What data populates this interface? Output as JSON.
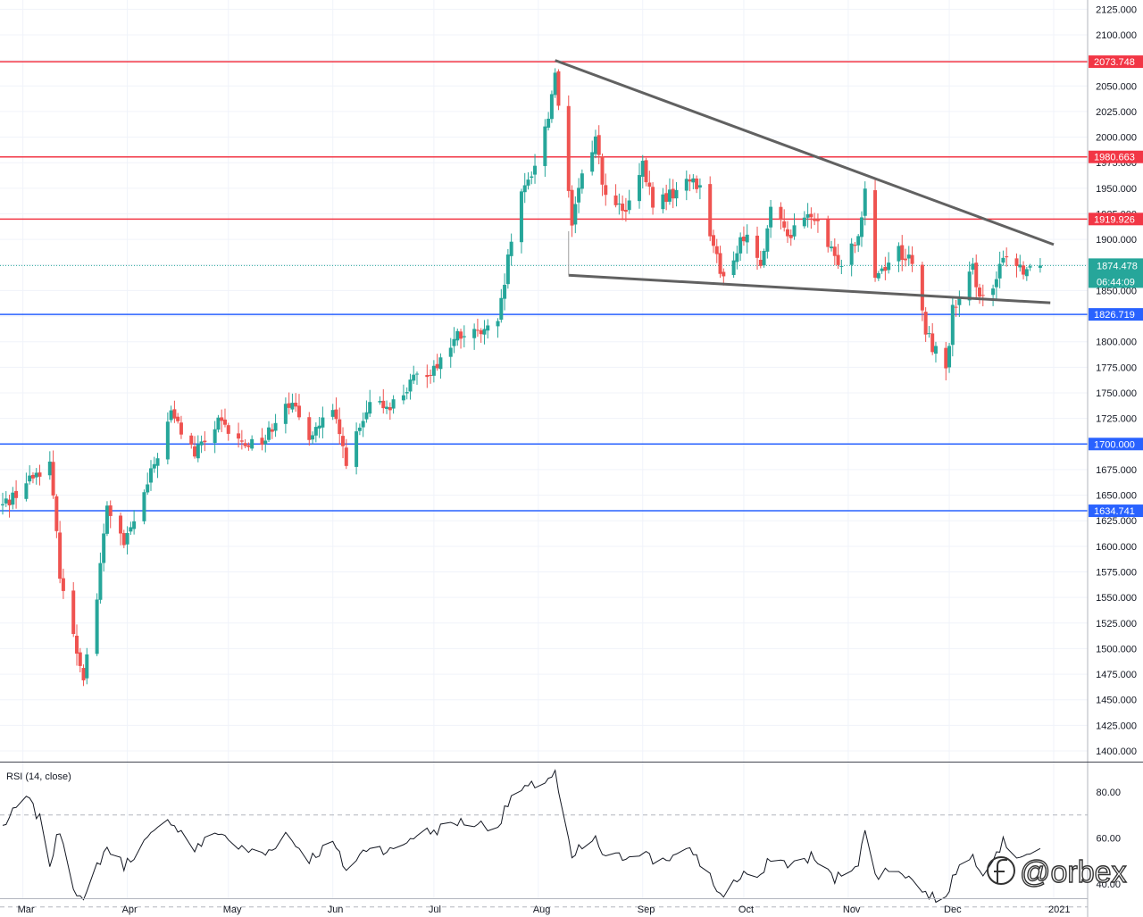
{
  "chart_data": [
    {
      "type": "candlestick",
      "ylim": [
        1385,
        2130
      ],
      "ticks": [
        "2125.000",
        "2100.000",
        "2075.000",
        "2050.000",
        "2025.000",
        "2000.000",
        "1975.000",
        "1950.000",
        "1925.000",
        "1900.000",
        "1875.000",
        "1850.000",
        "1825.000",
        "1800.000",
        "1775.000",
        "1750.000",
        "1725.000",
        "1700.000",
        "1675.000",
        "1650.000",
        "1625.000",
        "1600.000",
        "1575.000",
        "1550.000",
        "1525.000",
        "1500.000",
        "1475.000",
        "1450.000",
        "1425.000",
        "1400.000"
      ],
      "months": [
        "Mar",
        "Apr",
        "May",
        "Jun",
        "Jul",
        "Aug",
        "Sep",
        "Oct",
        "Nov",
        "Dec",
        "2021"
      ],
      "horizontal_levels": [
        {
          "value": 2073.748,
          "label": "2073.748",
          "color": "#f23645"
        },
        {
          "value": 1980.663,
          "label": "1980.663",
          "color": "#f23645"
        },
        {
          "value": 1919.926,
          "label": "1919.926",
          "color": "#f23645"
        },
        {
          "value": 1826.719,
          "label": "1826.719",
          "color": "#2962ff"
        },
        {
          "value": 1700.0,
          "label": "1700.000",
          "color": "#2962ff"
        },
        {
          "value": 1634.741,
          "label": "1634.741",
          "color": "#2962ff"
        }
      ],
      "last_price": {
        "value": 1874.478,
        "label": "1874.478",
        "countdown": "06:44:09",
        "color": "#26a69a"
      },
      "trendlines": [
        {
          "from": {
            "date": "2020-08-06",
            "price": 2075
          },
          "to": {
            "date": "2021-01-01",
            "price": 1895
          }
        },
        {
          "from": {
            "date": "2020-08-10",
            "price": 1865
          },
          "to": {
            "date": "2020-12-31",
            "price": 1838
          }
        }
      ],
      "colors": {
        "up": "#26a69a",
        "down": "#ef5350"
      },
      "key_prices": [
        {
          "date": "2020-02-24",
          "price": 1640
        },
        {
          "date": "2020-03-06",
          "price": 1675
        },
        {
          "date": "2020-03-09",
          "price": 1680
        },
        {
          "date": "2020-03-12",
          "price": 1575
        },
        {
          "date": "2020-03-16",
          "price": 1510
        },
        {
          "date": "2020-03-19",
          "price": 1475
        },
        {
          "date": "2020-03-23",
          "price": 1550
        },
        {
          "date": "2020-03-26",
          "price": 1640
        },
        {
          "date": "2020-03-31",
          "price": 1600
        },
        {
          "date": "2020-04-06",
          "price": 1650
        },
        {
          "date": "2020-04-14",
          "price": 1730
        },
        {
          "date": "2020-04-21",
          "price": 1690
        },
        {
          "date": "2020-04-28",
          "price": 1720
        },
        {
          "date": "2020-05-05",
          "price": 1700
        },
        {
          "date": "2020-05-12",
          "price": 1705
        },
        {
          "date": "2020-05-18",
          "price": 1745
        },
        {
          "date": "2020-05-25",
          "price": 1710
        },
        {
          "date": "2020-06-01",
          "price": 1730
        },
        {
          "date": "2020-06-05",
          "price": 1685
        },
        {
          "date": "2020-06-12",
          "price": 1735
        },
        {
          "date": "2020-06-19",
          "price": 1740
        },
        {
          "date": "2020-06-26",
          "price": 1765
        },
        {
          "date": "2020-07-01",
          "price": 1775
        },
        {
          "date": "2020-07-08",
          "price": 1805
        },
        {
          "date": "2020-07-15",
          "price": 1808
        },
        {
          "date": "2020-07-20",
          "price": 1815
        },
        {
          "date": "2020-07-24",
          "price": 1900
        },
        {
          "date": "2020-07-27",
          "price": 1940
        },
        {
          "date": "2020-07-31",
          "price": 1975
        },
        {
          "date": "2020-08-04",
          "price": 2020
        },
        {
          "date": "2020-08-06",
          "price": 2065
        },
        {
          "date": "2020-08-07",
          "price": 2035
        },
        {
          "date": "2020-08-11",
          "price": 1910
        },
        {
          "date": "2020-08-13",
          "price": 1950
        },
        {
          "date": "2020-08-18",
          "price": 2000
        },
        {
          "date": "2020-08-21",
          "price": 1940
        },
        {
          "date": "2020-08-27",
          "price": 1925
        },
        {
          "date": "2020-09-01",
          "price": 1970
        },
        {
          "date": "2020-09-04",
          "price": 1935
        },
        {
          "date": "2020-09-10",
          "price": 1945
        },
        {
          "date": "2020-09-16",
          "price": 1960
        },
        {
          "date": "2020-09-18",
          "price": 1950
        },
        {
          "date": "2020-09-21",
          "price": 1910
        },
        {
          "date": "2020-09-24",
          "price": 1865
        },
        {
          "date": "2020-09-28",
          "price": 1880
        },
        {
          "date": "2020-10-01",
          "price": 1905
        },
        {
          "date": "2020-10-06",
          "price": 1880
        },
        {
          "date": "2020-10-09",
          "price": 1925
        },
        {
          "date": "2020-10-15",
          "price": 1905
        },
        {
          "date": "2020-10-21",
          "price": 1925
        },
        {
          "date": "2020-10-28",
          "price": 1880
        },
        {
          "date": "2020-10-30",
          "price": 1880
        },
        {
          "date": "2020-11-04",
          "price": 1905
        },
        {
          "date": "2020-11-06",
          "price": 1952
        },
        {
          "date": "2020-11-09",
          "price": 1865
        },
        {
          "date": "2020-11-12",
          "price": 1875
        },
        {
          "date": "2020-11-16",
          "price": 1890
        },
        {
          "date": "2020-11-20",
          "price": 1875
        },
        {
          "date": "2020-11-24",
          "price": 1810
        },
        {
          "date": "2020-11-27",
          "price": 1790
        },
        {
          "date": "2020-11-30",
          "price": 1775
        },
        {
          "date": "2020-12-02",
          "price": 1830
        },
        {
          "date": "2020-12-04",
          "price": 1838
        },
        {
          "date": "2020-12-08",
          "price": 1870
        },
        {
          "date": "2020-12-11",
          "price": 1840
        },
        {
          "date": "2020-12-15",
          "price": 1855
        },
        {
          "date": "2020-12-17",
          "price": 1888
        },
        {
          "date": "2020-12-21",
          "price": 1875
        },
        {
          "date": "2020-12-23",
          "price": 1872
        },
        {
          "date": "2020-12-28",
          "price": 1874.478
        }
      ]
    },
    {
      "type": "line",
      "indicator": "RSI (14, close)",
      "ylim": [
        20,
        95
      ],
      "ticks": [
        "80.00",
        "60.00",
        "40.00"
      ],
      "dashed_levels": [
        70,
        30
      ],
      "key_values": [
        {
          "date": "2020-02-24",
          "value": 65
        },
        {
          "date": "2020-03-02",
          "value": 78
        },
        {
          "date": "2020-03-06",
          "value": 68
        },
        {
          "date": "2020-03-09",
          "value": 49
        },
        {
          "date": "2020-03-12",
          "value": 64
        },
        {
          "date": "2020-03-16",
          "value": 40
        },
        {
          "date": "2020-03-19",
          "value": 31
        },
        {
          "date": "2020-03-23",
          "value": 48
        },
        {
          "date": "2020-03-26",
          "value": 56
        },
        {
          "date": "2020-03-31",
          "value": 48
        },
        {
          "date": "2020-04-06",
          "value": 58
        },
        {
          "date": "2020-04-14",
          "value": 68
        },
        {
          "date": "2020-04-21",
          "value": 55
        },
        {
          "date": "2020-04-28",
          "value": 63
        },
        {
          "date": "2020-05-05",
          "value": 55
        },
        {
          "date": "2020-05-12",
          "value": 53
        },
        {
          "date": "2020-05-18",
          "value": 62
        },
        {
          "date": "2020-05-25",
          "value": 51
        },
        {
          "date": "2020-06-01",
          "value": 58
        },
        {
          "date": "2020-06-05",
          "value": 46
        },
        {
          "date": "2020-06-12",
          "value": 57
        },
        {
          "date": "2020-06-19",
          "value": 54
        },
        {
          "date": "2020-06-26",
          "value": 62
        },
        {
          "date": "2020-07-01",
          "value": 63
        },
        {
          "date": "2020-07-08",
          "value": 67
        },
        {
          "date": "2020-07-15",
          "value": 66
        },
        {
          "date": "2020-07-20",
          "value": 65
        },
        {
          "date": "2020-07-24",
          "value": 78
        },
        {
          "date": "2020-07-31",
          "value": 83
        },
        {
          "date": "2020-08-04",
          "value": 86
        },
        {
          "date": "2020-08-06",
          "value": 88
        },
        {
          "date": "2020-08-07",
          "value": 80
        },
        {
          "date": "2020-08-11",
          "value": 50
        },
        {
          "date": "2020-08-13",
          "value": 55
        },
        {
          "date": "2020-08-18",
          "value": 59
        },
        {
          "date": "2020-08-21",
          "value": 51
        },
        {
          "date": "2020-08-27",
          "value": 52
        },
        {
          "date": "2020-09-01",
          "value": 55
        },
        {
          "date": "2020-09-04",
          "value": 50
        },
        {
          "date": "2020-09-10",
          "value": 52
        },
        {
          "date": "2020-09-16",
          "value": 54
        },
        {
          "date": "2020-09-21",
          "value": 43
        },
        {
          "date": "2020-09-24",
          "value": 35
        },
        {
          "date": "2020-09-28",
          "value": 40
        },
        {
          "date": "2020-10-01",
          "value": 45
        },
        {
          "date": "2020-10-06",
          "value": 42
        },
        {
          "date": "2020-10-09",
          "value": 52
        },
        {
          "date": "2020-10-15",
          "value": 48
        },
        {
          "date": "2020-10-21",
          "value": 52
        },
        {
          "date": "2020-10-28",
          "value": 42
        },
        {
          "date": "2020-11-04",
          "value": 50
        },
        {
          "date": "2020-11-06",
          "value": 62
        },
        {
          "date": "2020-11-09",
          "value": 44
        },
        {
          "date": "2020-11-16",
          "value": 47
        },
        {
          "date": "2020-11-24",
          "value": 36
        },
        {
          "date": "2020-11-30",
          "value": 32
        },
        {
          "date": "2020-12-02",
          "value": 45
        },
        {
          "date": "2020-12-08",
          "value": 52
        },
        {
          "date": "2020-12-11",
          "value": 46
        },
        {
          "date": "2020-12-17",
          "value": 58
        },
        {
          "date": "2020-12-21",
          "value": 53
        },
        {
          "date": "2020-12-28",
          "value": 53
        }
      ]
    }
  ],
  "indicator_label": "RSI (14, close)",
  "watermark": "@orbex"
}
